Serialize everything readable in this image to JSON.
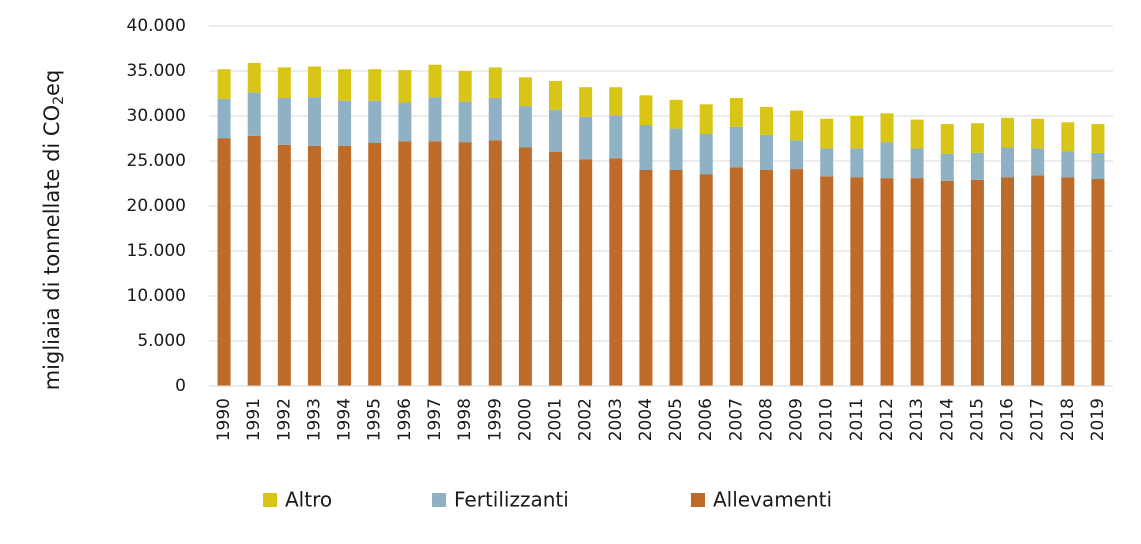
{
  "chart_data": {
    "type": "bar",
    "stacked": true,
    "ylabel_prefix": "migliaia di tonnellate di CO",
    "ylabel_sub": "2",
    "ylabel_suffix": "eq",
    "xlabel": "",
    "ylim": [
      0,
      40000
    ],
    "yticks": [
      "0",
      "5.000",
      "10.000",
      "15.000",
      "20.000",
      "25.000",
      "30.000",
      "35.000",
      "40.000"
    ],
    "ytick_values": [
      0,
      5000,
      10000,
      15000,
      20000,
      25000,
      30000,
      35000,
      40000
    ],
    "grid": true,
    "legend_position": "bottom",
    "categories": [
      "1990",
      "1991",
      "1992",
      "1993",
      "1994",
      "1995",
      "1996",
      "1997",
      "1998",
      "1999",
      "2000",
      "2001",
      "2002",
      "2003",
      "2004",
      "2005",
      "2006",
      "2007",
      "2008",
      "2009",
      "2010",
      "2011",
      "2012",
      "2013",
      "2014",
      "2015",
      "2016",
      "2017",
      "2018",
      "2019"
    ],
    "series": [
      {
        "name": "Allevamenti",
        "color": "#BE6A28",
        "values": [
          27500,
          27800,
          26800,
          26700,
          26700,
          27000,
          27200,
          27200,
          27100,
          27300,
          26500,
          26000,
          25200,
          25300,
          24000,
          24000,
          23500,
          24300,
          24000,
          24100,
          23300,
          23200,
          23100,
          23100,
          22800,
          22900,
          23200,
          23400,
          23200,
          23000
        ]
      },
      {
        "name": "Fertilizzanti",
        "color": "#8FB1C4",
        "values": [
          4400,
          4800,
          5200,
          5400,
          5000,
          4700,
          4300,
          4900,
          4500,
          4700,
          4600,
          4700,
          4700,
          4700,
          5000,
          4600,
          4500,
          4500,
          3900,
          3200,
          3100,
          3200,
          4000,
          3300,
          3000,
          3000,
          3300,
          3000,
          2900,
          2900
        ]
      },
      {
        "name": "Altro",
        "color": "#D9C516",
        "values": [
          3300,
          3300,
          3400,
          3400,
          3500,
          3500,
          3600,
          3600,
          3400,
          3400,
          3200,
          3200,
          3300,
          3200,
          3300,
          3200,
          3300,
          3200,
          3100,
          3300,
          3300,
          3600,
          3200,
          3200,
          3300,
          3300,
          3300,
          3300,
          3200,
          3200
        ]
      }
    ],
    "legend_order": [
      "Altro",
      "Fertilizzanti",
      "Allevamenti"
    ]
  }
}
